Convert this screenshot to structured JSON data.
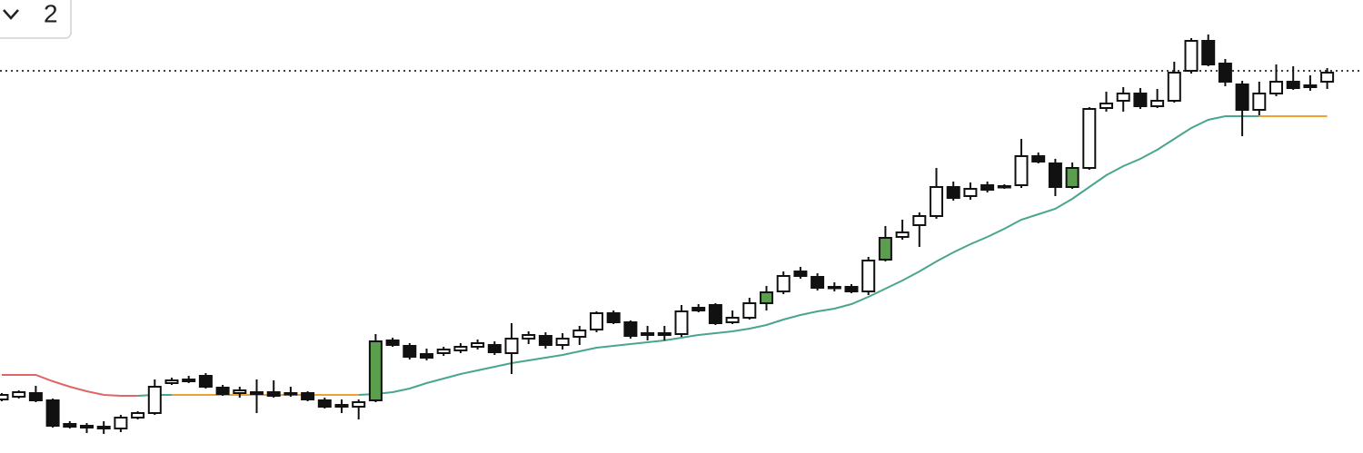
{
  "toolbar": {
    "dropdown_value": "2"
  },
  "chart_data": {
    "type": "candlestick",
    "ylim": [
      0,
      499
    ],
    "price_line": 421,
    "price_line_color": "#000000",
    "open": [
      59,
      62,
      66,
      58,
      32,
      28,
      29,
      27,
      39,
      44,
      77,
      79,
      85,
      72,
      66,
      65,
      67,
      65,
      66,
      58,
      53,
      51,
      58,
      124,
      118,
      109,
      110,
      113,
      117,
      119,
      110,
      126,
      129,
      119,
      128,
      136,
      154,
      144,
      130,
      130,
      131,
      160,
      163,
      144,
      149,
      165,
      178,
      200,
      194,
      182,
      183,
      178,
      213,
      238,
      251,
      261,
      293,
      283,
      295,
      293,
      295,
      327,
      319,
      293,
      314,
      380,
      388,
      396,
      382,
      388,
      421,
      454,
      429,
      406,
      378,
      396,
      409,
      403,
      409
    ],
    "high": [
      66,
      69,
      74,
      60,
      35,
      33,
      35,
      42,
      46,
      81,
      83,
      85,
      88,
      75,
      73,
      81,
      80,
      73,
      68,
      61,
      59,
      59,
      131,
      127,
      121,
      115,
      117,
      121,
      125,
      123,
      143,
      134,
      133,
      132,
      140,
      156,
      157,
      146,
      140,
      140,
      163,
      164,
      165,
      157,
      171,
      184,
      200,
      205,
      198,
      188,
      186,
      216,
      250,
      257,
      265,
      314,
      299,
      298,
      299,
      296,
      346,
      331,
      324,
      320,
      381,
      398,
      403,
      402,
      401,
      431,
      457,
      461,
      434,
      410,
      409,
      428,
      426,
      416,
      424
    ],
    "low": [
      57,
      60,
      56,
      28,
      27,
      22,
      21,
      23,
      37,
      42,
      75,
      77,
      71,
      63,
      61,
      44,
      61,
      62,
      57,
      49,
      44,
      37,
      56,
      117,
      103,
      102,
      107,
      110,
      114,
      108,
      87,
      120,
      115,
      114,
      119,
      133,
      142,
      126,
      124,
      124,
      128,
      155,
      141,
      142,
      147,
      157,
      175,
      192,
      179,
      178,
      176,
      174,
      211,
      235,
      227,
      258,
      278,
      279,
      287,
      291,
      292,
      319,
      283,
      291,
      312,
      376,
      376,
      379,
      380,
      386,
      418,
      426,
      404,
      349,
      372,
      393,
      400,
      399,
      401
    ],
    "close": [
      64,
      67,
      58,
      30,
      29,
      30,
      27,
      39,
      44,
      73,
      80,
      81,
      73,
      65,
      69,
      67,
      63,
      66,
      59,
      51,
      51,
      56,
      123,
      119,
      106,
      105,
      114,
      117,
      121,
      111,
      126,
      130,
      119,
      126,
      135,
      154,
      144,
      129,
      132,
      132,
      156,
      157,
      143,
      149,
      165,
      177,
      195,
      195,
      182,
      183,
      178,
      212,
      237,
      243,
      261,
      293,
      281,
      291,
      290,
      294,
      327,
      321,
      293,
      314,
      379,
      385,
      396,
      382,
      388,
      419,
      454,
      428,
      409,
      378,
      396,
      409,
      402,
      405,
      419
    ],
    "colors": [
      "#ffffff",
      "#ffffff",
      "#111111",
      "#111111",
      "#111111",
      "#ffffff",
      "#111111",
      "#ffffff",
      "#ffffff",
      "#ffffff",
      "#ffffff",
      "#ffffff",
      "#111111",
      "#111111",
      "#ffffff",
      "#ffffff",
      "#111111",
      "#ffffff",
      "#111111",
      "#111111",
      "#111111",
      "#ffffff",
      "#5a9e4e",
      "#111111",
      "#111111",
      "#111111",
      "#ffffff",
      "#ffffff",
      "#ffffff",
      "#111111",
      "#ffffff",
      "#ffffff",
      "#111111",
      "#ffffff",
      "#ffffff",
      "#ffffff",
      "#111111",
      "#111111",
      "#ffffff",
      "#ffffff",
      "#ffffff",
      "#111111",
      "#111111",
      "#ffffff",
      "#ffffff",
      "#5a9e4e",
      "#ffffff",
      "#111111",
      "#111111",
      "#ffffff",
      "#111111",
      "#ffffff",
      "#5a9e4e",
      "#ffffff",
      "#ffffff",
      "#ffffff",
      "#111111",
      "#ffffff",
      "#111111",
      "#ffffff",
      "#ffffff",
      "#111111",
      "#111111",
      "#5a9e4e",
      "#ffffff",
      "#ffffff",
      "#ffffff",
      "#111111",
      "#ffffff",
      "#ffffff",
      "#ffffff",
      "#111111",
      "#111111",
      "#111111",
      "#ffffff",
      "#ffffff",
      "#111111",
      "#ffffff",
      "#ffffff"
    ],
    "series": [
      {
        "color": "#e06666",
        "values": [
          86,
          86,
          86,
          79,
          73,
          68,
          64,
          63,
          63,
          null,
          null,
          null,
          null,
          null,
          null,
          null,
          null,
          null,
          null,
          null,
          null,
          null,
          null,
          null,
          null,
          null,
          null,
          null,
          null,
          null,
          null,
          null,
          null,
          null,
          null,
          null,
          null,
          null,
          null,
          null,
          null,
          null,
          null,
          null,
          null,
          null,
          null,
          null,
          null,
          null,
          null,
          null,
          null,
          null,
          null,
          null,
          null,
          null,
          null,
          null,
          null,
          null,
          null,
          null,
          null,
          null,
          null,
          null,
          null,
          null,
          null,
          null,
          null,
          null,
          null,
          null,
          null,
          null,
          null
        ]
      },
      {
        "color": "#4aa58f",
        "values": [
          null,
          null,
          null,
          null,
          null,
          null,
          null,
          null,
          63,
          64,
          64,
          null,
          null,
          null,
          null,
          null,
          null,
          null,
          null,
          null,
          null,
          64,
          65,
          67,
          71,
          77,
          82,
          87,
          91,
          95,
          99,
          102,
          105,
          108,
          112,
          116,
          118,
          120,
          122,
          124,
          127,
          130,
          132,
          134,
          137,
          141,
          147,
          152,
          156,
          159,
          164,
          172,
          181,
          190,
          200,
          211,
          221,
          230,
          238,
          247,
          257,
          263,
          269,
          280,
          293,
          306,
          316,
          324,
          334,
          346,
          358,
          367,
          371,
          371,
          371,
          null,
          null,
          null,
          null
        ]
      },
      {
        "color": "#f0a030",
        "values": [
          null,
          null,
          null,
          null,
          null,
          null,
          null,
          null,
          null,
          null,
          64,
          64,
          64,
          64,
          64,
          64,
          64,
          64,
          64,
          64,
          64,
          64,
          null,
          null,
          null,
          null,
          null,
          null,
          null,
          null,
          null,
          null,
          null,
          null,
          null,
          null,
          null,
          null,
          null,
          null,
          null,
          null,
          null,
          null,
          null,
          null,
          null,
          null,
          null,
          null,
          null,
          null,
          null,
          null,
          null,
          null,
          null,
          null,
          null,
          null,
          null,
          null,
          null,
          null,
          null,
          null,
          null,
          null,
          null,
          null,
          null,
          null,
          null,
          null,
          371,
          371,
          371,
          371,
          371
        ]
      }
    ]
  }
}
